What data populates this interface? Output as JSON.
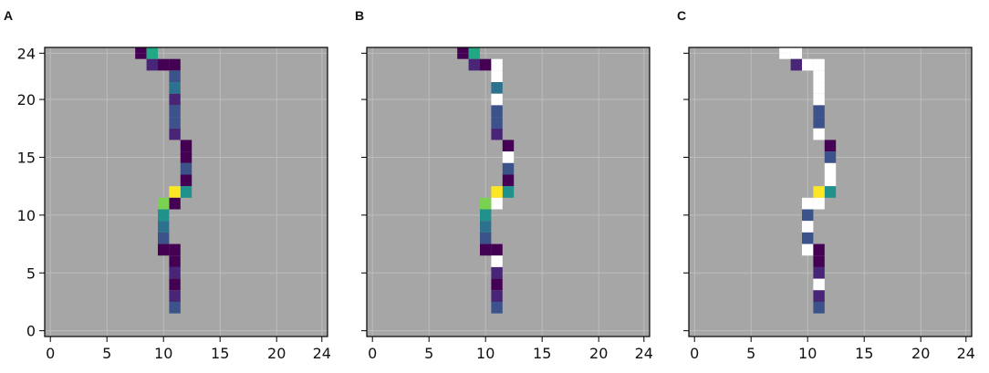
{
  "chart_data": {
    "type": "heatmap",
    "xlim": [
      -0.5,
      24.5
    ],
    "ylim": [
      -0.5,
      24.5
    ],
    "xticks": [
      0,
      5,
      10,
      15,
      20,
      24
    ],
    "yticks": [
      0,
      5,
      10,
      15,
      20,
      24
    ],
    "grid": true,
    "background_color": "#a6a6a6",
    "grid_color": "#bdbdbd",
    "panels": [
      {
        "label": "A",
        "show_y_tick_labels": true,
        "cells": [
          {
            "x": 8,
            "y": 24,
            "y2": 24.5,
            "color": "#440154"
          },
          {
            "x": 8,
            "y": 23.5,
            "y2": 24,
            "color": "#440154"
          },
          {
            "x": 9,
            "y": 24,
            "color": "#22a884"
          },
          {
            "x": 9,
            "y": 23,
            "color": "#482576"
          },
          {
            "x": 10,
            "y": 23,
            "color": "#440154"
          },
          {
            "x": 11,
            "y": 23,
            "color": "#440154"
          },
          {
            "x": 11,
            "y": 22,
            "color": "#3b528b"
          },
          {
            "x": 11,
            "y": 21,
            "color": "#2c728e"
          },
          {
            "x": 11,
            "y": 20,
            "color": "#482576"
          },
          {
            "x": 11,
            "y": 19,
            "color": "#3b528b"
          },
          {
            "x": 11,
            "y": 18,
            "color": "#3b528b"
          },
          {
            "x": 11,
            "y": 17,
            "color": "#482576"
          },
          {
            "x": 12,
            "y": 16,
            "color": "#440154"
          },
          {
            "x": 12,
            "y": 15,
            "color": "#440154"
          },
          {
            "x": 12,
            "y": 14,
            "color": "#3b528b"
          },
          {
            "x": 12,
            "y": 13,
            "color": "#440154"
          },
          {
            "x": 12,
            "y": 12,
            "color": "#21918c"
          },
          {
            "x": 11,
            "y": 12,
            "color": "#fde725"
          },
          {
            "x": 11,
            "y": 11,
            "color": "#440154"
          },
          {
            "x": 10,
            "y": 11,
            "color": "#7ad151"
          },
          {
            "x": 10,
            "y": 10,
            "color": "#21918c"
          },
          {
            "x": 10,
            "y": 9,
            "color": "#2c728e"
          },
          {
            "x": 10,
            "y": 8,
            "color": "#3b528b"
          },
          {
            "x": 10,
            "y": 7,
            "color": "#440154"
          },
          {
            "x": 11,
            "y": 7,
            "color": "#440154"
          },
          {
            "x": 11,
            "y": 6,
            "color": "#440154"
          },
          {
            "x": 11,
            "y": 5,
            "color": "#482576"
          },
          {
            "x": 11,
            "y": 4,
            "color": "#440154"
          },
          {
            "x": 11,
            "y": 3,
            "color": "#482576"
          },
          {
            "x": 11,
            "y": 2,
            "color": "#3b528b"
          }
        ]
      },
      {
        "label": "B",
        "show_y_tick_labels": false,
        "cells": [
          {
            "x": 8,
            "y": 24,
            "y2": 24.5,
            "color": "#440154"
          },
          {
            "x": 8,
            "y": 23.5,
            "y2": 24,
            "color": "#440154"
          },
          {
            "x": 9,
            "y": 24,
            "color": "#22a884"
          },
          {
            "x": 9,
            "y": 23,
            "color": "#482576"
          },
          {
            "x": 10,
            "y": 23,
            "color": "#440154"
          },
          {
            "x": 11,
            "y": 23,
            "color": "#ffffff"
          },
          {
            "x": 11,
            "y": 22,
            "color": "#ffffff"
          },
          {
            "x": 11,
            "y": 21,
            "color": "#2c728e"
          },
          {
            "x": 11,
            "y": 20,
            "color": "#ffffff"
          },
          {
            "x": 11,
            "y": 19,
            "color": "#3b528b"
          },
          {
            "x": 11,
            "y": 18,
            "color": "#3b528b"
          },
          {
            "x": 11,
            "y": 17,
            "color": "#482576"
          },
          {
            "x": 12,
            "y": 16,
            "color": "#440154"
          },
          {
            "x": 12,
            "y": 15,
            "color": "#ffffff"
          },
          {
            "x": 12,
            "y": 14,
            "color": "#3b528b"
          },
          {
            "x": 12,
            "y": 13,
            "color": "#440154"
          },
          {
            "x": 12,
            "y": 12,
            "color": "#21918c"
          },
          {
            "x": 11,
            "y": 12,
            "color": "#fde725"
          },
          {
            "x": 11,
            "y": 11,
            "color": "#ffffff"
          },
          {
            "x": 10,
            "y": 11,
            "color": "#7ad151"
          },
          {
            "x": 10,
            "y": 10,
            "color": "#21918c"
          },
          {
            "x": 10,
            "y": 9,
            "color": "#2c728e"
          },
          {
            "x": 10,
            "y": 8,
            "color": "#3b528b"
          },
          {
            "x": 10,
            "y": 7,
            "color": "#440154"
          },
          {
            "x": 11,
            "y": 7,
            "color": "#440154"
          },
          {
            "x": 11,
            "y": 6,
            "color": "#ffffff"
          },
          {
            "x": 11,
            "y": 5,
            "color": "#482576"
          },
          {
            "x": 11,
            "y": 4,
            "color": "#440154"
          },
          {
            "x": 11,
            "y": 3,
            "color": "#482576"
          },
          {
            "x": 11,
            "y": 2,
            "color": "#3b528b"
          }
        ]
      },
      {
        "label": "C",
        "show_y_tick_labels": false,
        "cells": [
          {
            "x": 8,
            "y": 24,
            "y2": 24.5,
            "color": "#ffffff"
          },
          {
            "x": 8,
            "y": 23.5,
            "y2": 24,
            "color": "#ffffff"
          },
          {
            "x": 9,
            "y": 24,
            "color": "#ffffff"
          },
          {
            "x": 9,
            "y": 23,
            "color": "#482576"
          },
          {
            "x": 10,
            "y": 23,
            "color": "#ffffff"
          },
          {
            "x": 11,
            "y": 23,
            "color": "#ffffff"
          },
          {
            "x": 11,
            "y": 22,
            "color": "#ffffff"
          },
          {
            "x": 11,
            "y": 21,
            "color": "#ffffff"
          },
          {
            "x": 11,
            "y": 20,
            "color": "#ffffff"
          },
          {
            "x": 11,
            "y": 19,
            "color": "#3b528b"
          },
          {
            "x": 11,
            "y": 18,
            "color": "#3b528b"
          },
          {
            "x": 11,
            "y": 17,
            "color": "#ffffff"
          },
          {
            "x": 12,
            "y": 16,
            "color": "#440154"
          },
          {
            "x": 12,
            "y": 15,
            "color": "#3b528b"
          },
          {
            "x": 12,
            "y": 14,
            "color": "#ffffff"
          },
          {
            "x": 12,
            "y": 13,
            "color": "#ffffff"
          },
          {
            "x": 12,
            "y": 12,
            "color": "#21918c"
          },
          {
            "x": 11,
            "y": 12,
            "color": "#fde725"
          },
          {
            "x": 11,
            "y": 11,
            "color": "#ffffff"
          },
          {
            "x": 10,
            "y": 11,
            "color": "#ffffff"
          },
          {
            "x": 10,
            "y": 10,
            "color": "#3b528b"
          },
          {
            "x": 10,
            "y": 9,
            "color": "#ffffff"
          },
          {
            "x": 10,
            "y": 8,
            "color": "#3b528b"
          },
          {
            "x": 10,
            "y": 7,
            "color": "#ffffff"
          },
          {
            "x": 11,
            "y": 7,
            "color": "#440154"
          },
          {
            "x": 11,
            "y": 6,
            "color": "#440154"
          },
          {
            "x": 11,
            "y": 5,
            "color": "#482576"
          },
          {
            "x": 11,
            "y": 4,
            "color": "#ffffff"
          },
          {
            "x": 11,
            "y": 3,
            "color": "#482576"
          },
          {
            "x": 11,
            "y": 2,
            "color": "#3b528b"
          }
        ]
      }
    ]
  }
}
